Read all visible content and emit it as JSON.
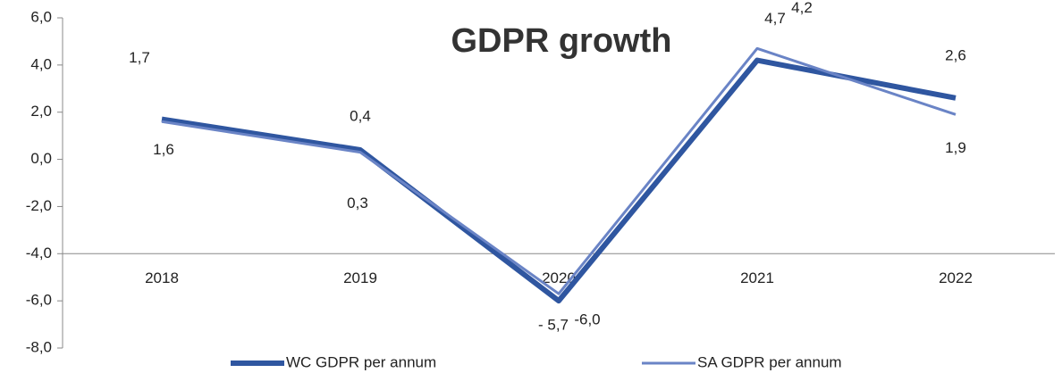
{
  "chart_data": {
    "type": "line",
    "title": "GDPR growth",
    "categories": [
      "2018",
      "2019",
      "2020",
      "2021",
      "2022"
    ],
    "series": [
      {
        "name": "WC GDPR per annum",
        "color": "#2f56a0",
        "values": [
          1.7,
          0.4,
          -6.0,
          4.2,
          2.6
        ],
        "value_labels": [
          "1,7",
          "0,4",
          "-6,0",
          "4,2",
          "2,6"
        ]
      },
      {
        "name": "SA GDPR per annum",
        "color": "#6a84c6",
        "values": [
          1.6,
          0.3,
          -5.7,
          4.7,
          1.9
        ],
        "value_labels": [
          "1,6",
          "0,3",
          "- 5,7",
          "4,7",
          "1,9"
        ]
      }
    ],
    "ylim": [
      -8,
      6
    ],
    "yticks": [
      {
        "value": -8,
        "label": "-8,0"
      },
      {
        "value": -6,
        "label": "-6,0"
      },
      {
        "value": -4,
        "label": "-4,0"
      },
      {
        "value": -2,
        "label": "-2,0"
      },
      {
        "value": 0,
        "label": "0,0"
      },
      {
        "value": 2,
        "label": "2,0"
      },
      {
        "value": 4,
        "label": "4,0"
      },
      {
        "value": 6,
        "label": "6,0"
      }
    ],
    "category_axis_at": -4,
    "legend": "bottom"
  }
}
